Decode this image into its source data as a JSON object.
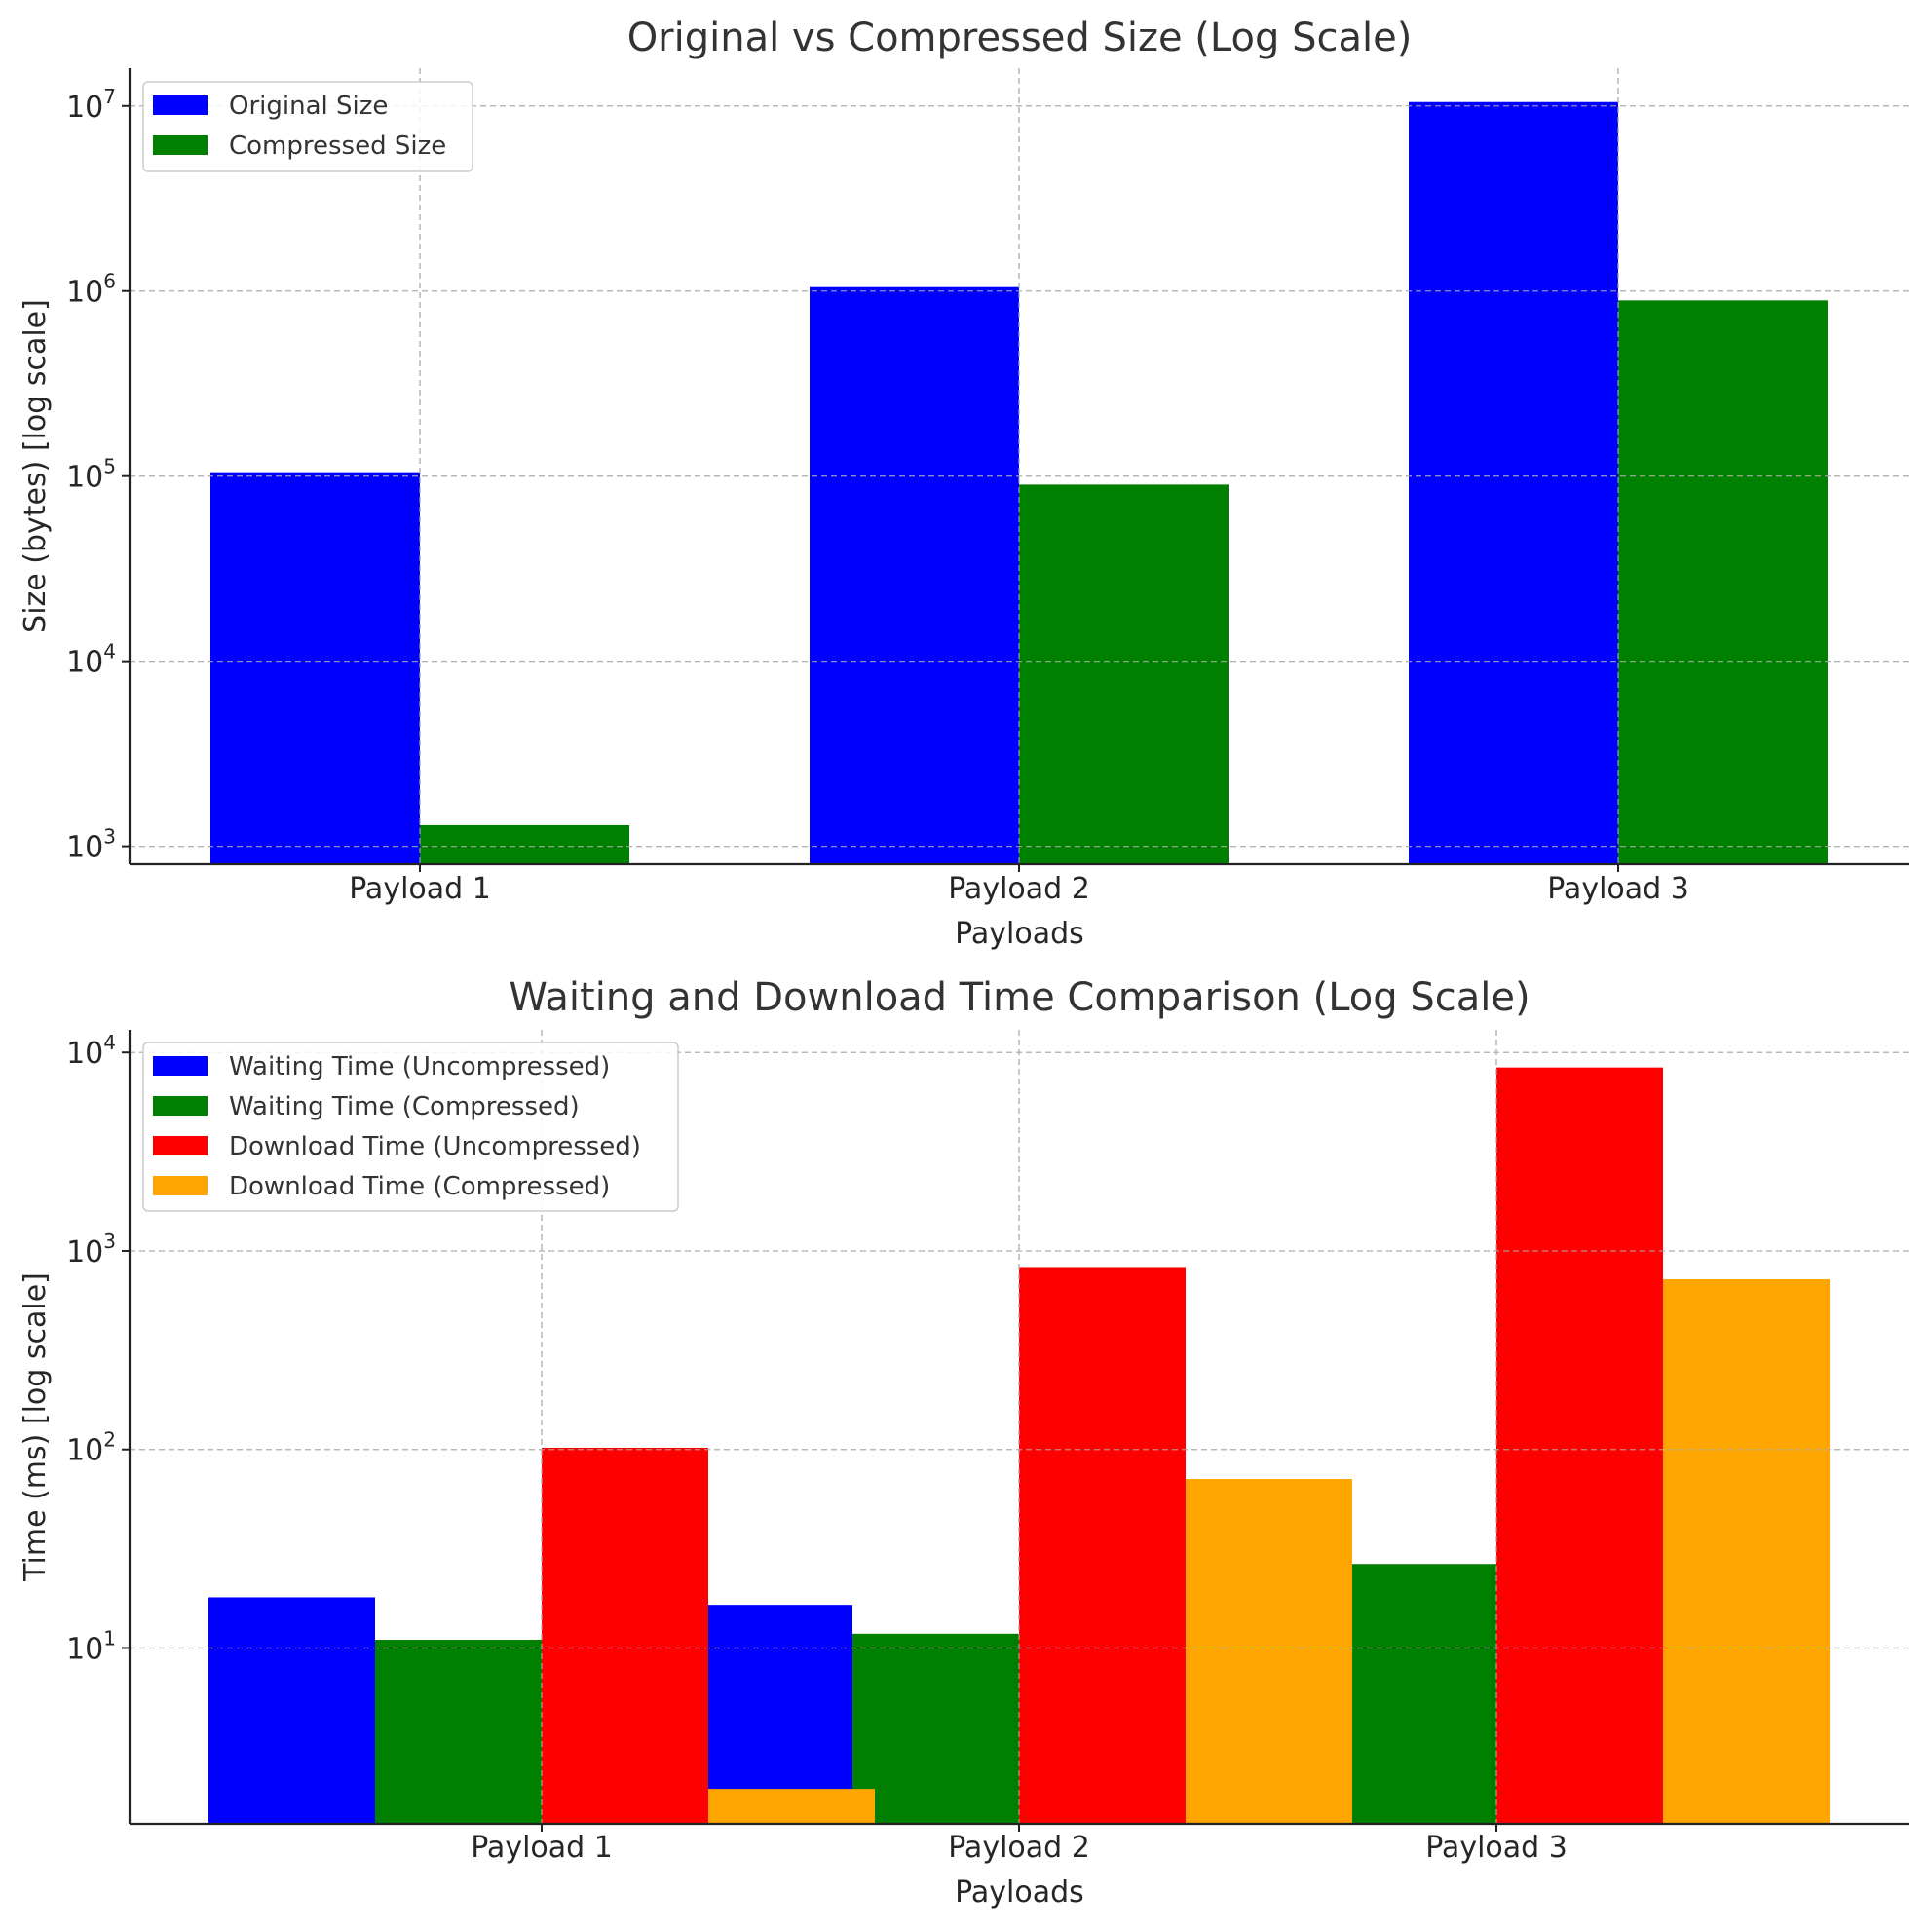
{
  "chart_data": [
    {
      "type": "bar",
      "title": "Original vs Compressed Size (Log Scale)",
      "xlabel": "Payloads",
      "ylabel": "Size (bytes) [log scale]",
      "yscale": "log",
      "ylim": [
        800,
        16000000
      ],
      "yticks": [
        {
          "base": "10",
          "exp": "3"
        },
        {
          "base": "10",
          "exp": "4"
        },
        {
          "base": "10",
          "exp": "5"
        },
        {
          "base": "10",
          "exp": "6"
        },
        {
          "base": "10",
          "exp": "7"
        }
      ],
      "categories": [
        "Payload 1",
        "Payload 2",
        "Payload 3"
      ],
      "series": [
        {
          "name": "Original Size",
          "color": "#0000ff",
          "values": [
            105000,
            1050000,
            10500000
          ]
        },
        {
          "name": "Compressed Size",
          "color": "#008000",
          "values": [
            1300,
            90000,
            890000
          ]
        }
      ],
      "grid": true,
      "legend": "top-left"
    },
    {
      "type": "bar",
      "title": "Waiting and Download Time Comparison (Log Scale)",
      "xlabel": "Payloads",
      "ylabel": "Time (ms) [log scale]",
      "yscale": "log",
      "ylim": [
        1.3,
        13000
      ],
      "yticks": [
        {
          "base": "10",
          "exp": "1"
        },
        {
          "base": "10",
          "exp": "2"
        },
        {
          "base": "10",
          "exp": "3"
        },
        {
          "base": "10",
          "exp": "4"
        }
      ],
      "categories": [
        "Payload 1",
        "Payload 2",
        "Payload 3"
      ],
      "series": [
        {
          "name": "Waiting Time (Uncompressed)",
          "color": "#0000ff",
          "values": [
            18,
            16.5,
            0
          ]
        },
        {
          "name": "Waiting Time (Compressed)",
          "color": "#008000",
          "values": [
            11,
            11.8,
            26.5
          ]
        },
        {
          "name": "Download Time (Uncompressed)",
          "color": "#ff0000",
          "values": [
            102,
            830,
            8400
          ]
        },
        {
          "name": "Download Time (Compressed)",
          "color": "#ffa500",
          "values": [
            1.95,
            71,
            720
          ]
        }
      ],
      "grid": true,
      "legend": "top-left"
    }
  ]
}
